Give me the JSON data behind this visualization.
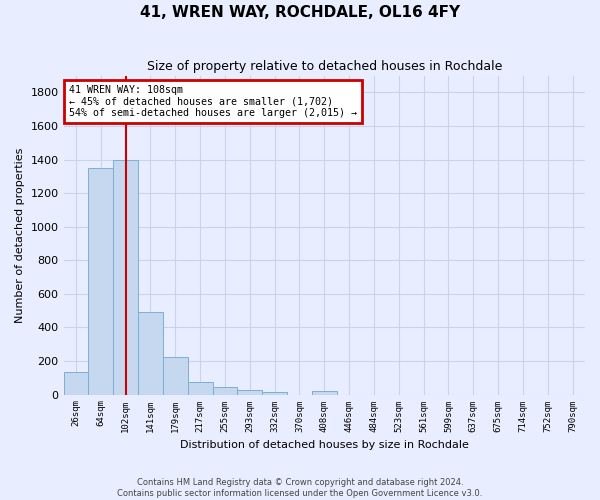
{
  "title": "41, WREN WAY, ROCHDALE, OL16 4FY",
  "subtitle": "Size of property relative to detached houses in Rochdale",
  "xlabel": "Distribution of detached houses by size in Rochdale",
  "ylabel": "Number of detached properties",
  "categories": [
    "26sqm",
    "64sqm",
    "102sqm",
    "141sqm",
    "179sqm",
    "217sqm",
    "255sqm",
    "293sqm",
    "332sqm",
    "370sqm",
    "408sqm",
    "446sqm",
    "484sqm",
    "523sqm",
    "561sqm",
    "599sqm",
    "637sqm",
    "675sqm",
    "714sqm",
    "752sqm",
    "790sqm"
  ],
  "values": [
    135,
    1350,
    1400,
    490,
    225,
    75,
    45,
    28,
    15,
    0,
    20,
    0,
    0,
    0,
    0,
    0,
    0,
    0,
    0,
    0,
    0
  ],
  "bar_color": "#c5d8f0",
  "bar_edge_color": "#7bafd4",
  "vline_x": 2,
  "vline_color": "#cc0000",
  "annotation_title": "41 WREN WAY: 108sqm",
  "annotation_line1": "← 45% of detached houses are smaller (1,702)",
  "annotation_line2": "54% of semi-detached houses are larger (2,015) →",
  "annotation_box_edge_color": "#cc0000",
  "ylim": [
    0,
    1900
  ],
  "yticks": [
    0,
    200,
    400,
    600,
    800,
    1000,
    1200,
    1400,
    1600,
    1800
  ],
  "bg_color": "#e8eeff",
  "grid_color": "#c8d4e8",
  "footer1": "Contains HM Land Registry data © Crown copyright and database right 2024.",
  "footer2": "Contains public sector information licensed under the Open Government Licence v3.0."
}
